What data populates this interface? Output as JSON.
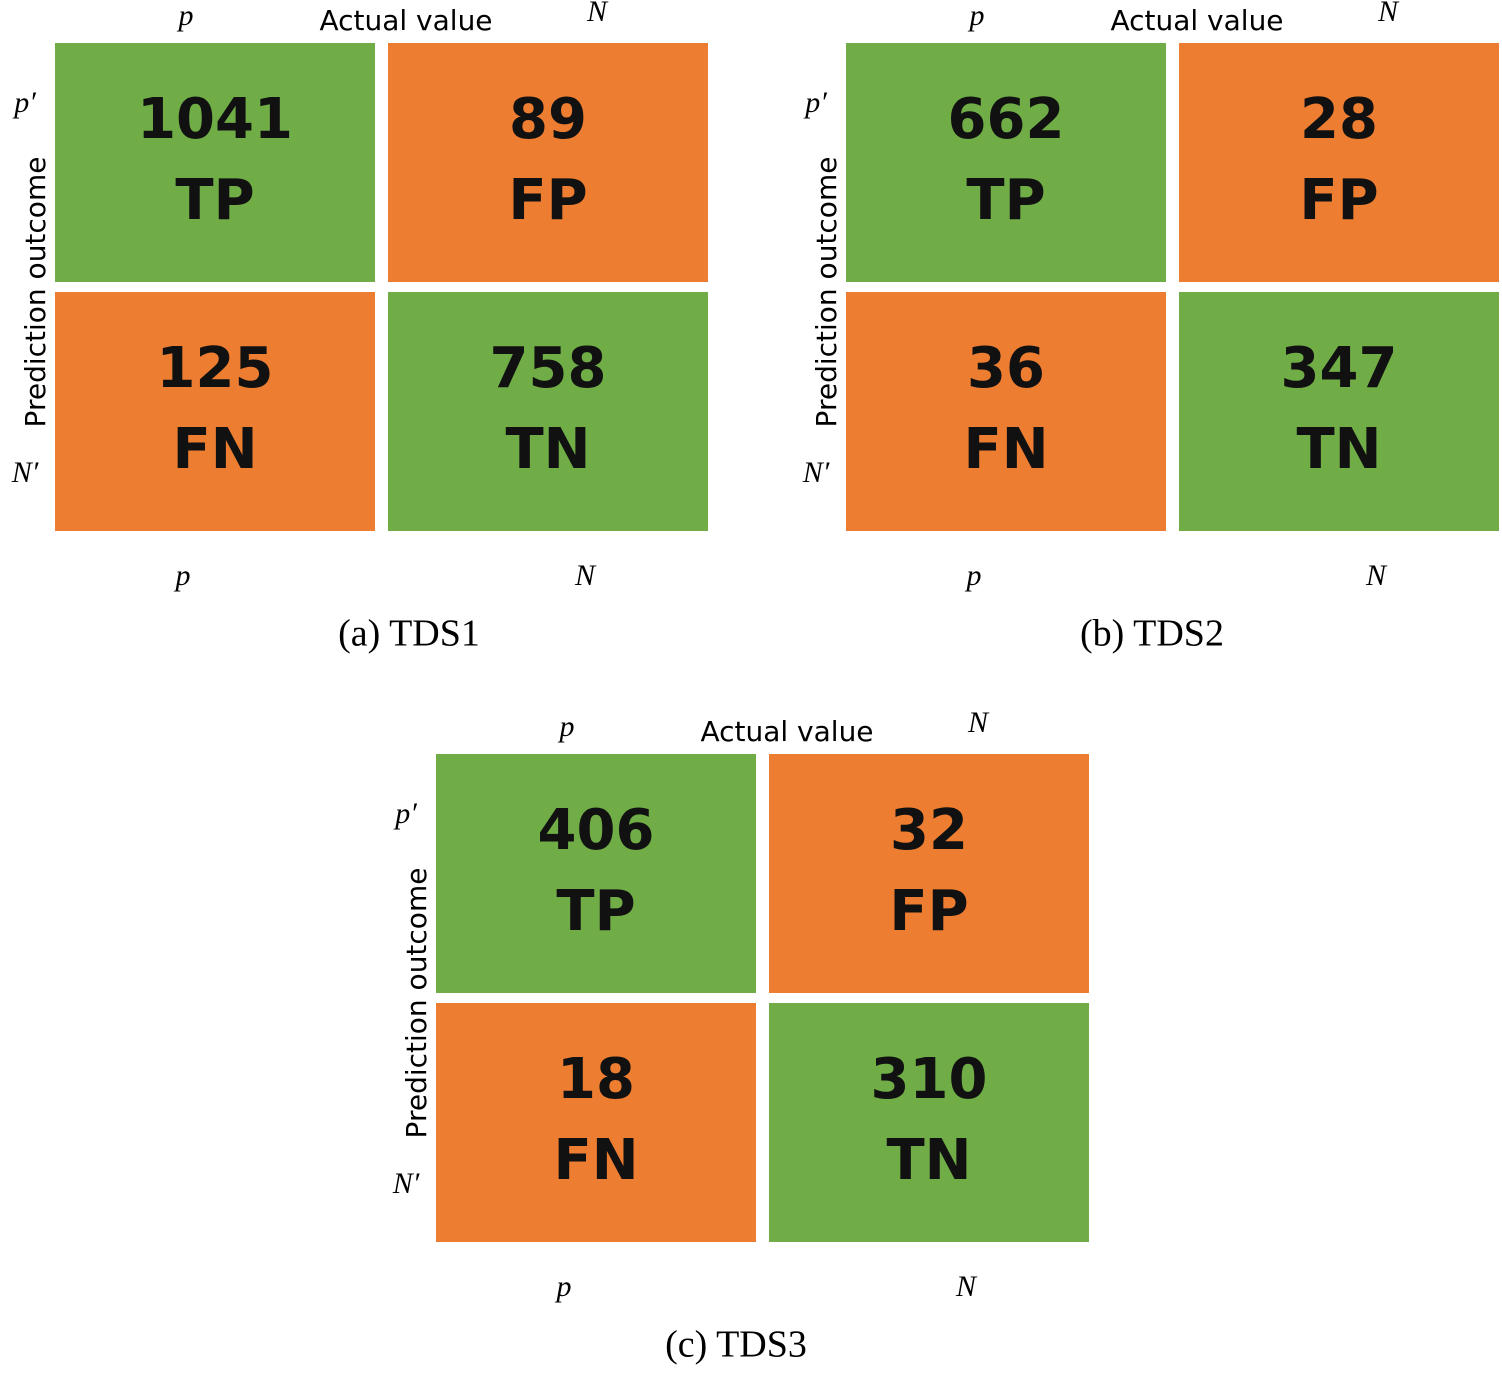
{
  "panels": [
    {
      "caption": "(a) TDS1",
      "actual_label": "Actual value",
      "prediction_label": "Prediction outcome",
      "top_labels": [
        "p",
        "N"
      ],
      "row_labels": [
        "p′",
        "N′"
      ],
      "bottom_labels": [
        "p",
        "N"
      ],
      "cells": [
        [
          {
            "count": "1041",
            "label": "TP"
          },
          {
            "count": "89",
            "label": "FP"
          }
        ],
        [
          {
            "count": "125",
            "label": "FN"
          },
          {
            "count": "758",
            "label": "TN"
          }
        ]
      ]
    },
    {
      "caption": "(b) TDS2",
      "actual_label": "Actual value",
      "prediction_label": "Prediction outcome",
      "top_labels": [
        "p",
        "N"
      ],
      "row_labels": [
        "p′",
        "N′"
      ],
      "bottom_labels": [
        "p",
        "N"
      ],
      "cells": [
        [
          {
            "count": "662",
            "label": "TP"
          },
          {
            "count": "28",
            "label": "FP"
          }
        ],
        [
          {
            "count": "36",
            "label": "FN"
          },
          {
            "count": "347",
            "label": "TN"
          }
        ]
      ]
    },
    {
      "caption": "(c) TDS3",
      "actual_label": "Actual value",
      "prediction_label": "Prediction outcome",
      "top_labels": [
        "p",
        "N"
      ],
      "row_labels": [
        "p′",
        "N′"
      ],
      "bottom_labels": [
        "p",
        "N"
      ],
      "cells": [
        [
          {
            "count": "406",
            "label": "TP"
          },
          {
            "count": "32",
            "label": "FP"
          }
        ],
        [
          {
            "count": "18",
            "label": "FN"
          },
          {
            "count": "310",
            "label": "TN"
          }
        ]
      ]
    }
  ]
}
